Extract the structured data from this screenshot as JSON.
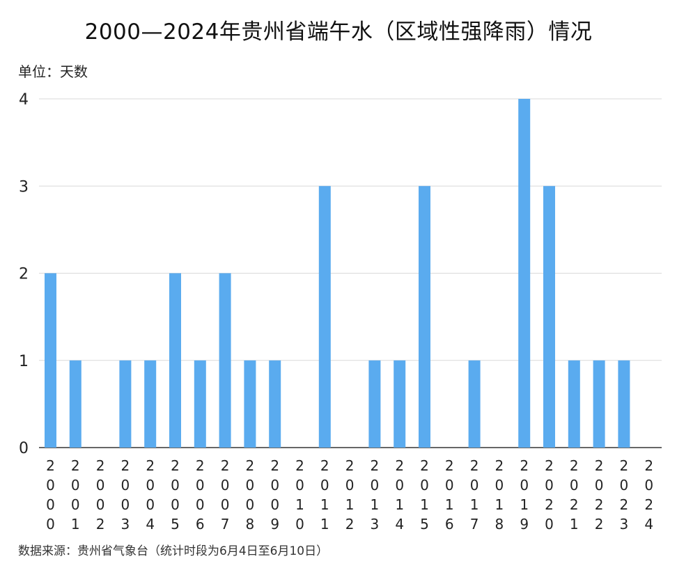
{
  "title": "2000—2024年贵州省端午水（区域性强降雨）情况",
  "unit_label": "单位：天数",
  "source_note": "数据来源：贵州省气象台（统计时段为6月4日至6月10日）",
  "colors": {
    "bar": "#5aabef"
  },
  "chart_data": {
    "type": "bar",
    "title": "2000—2024年贵州省端午水（区域性强降雨）情况",
    "xlabel": "",
    "ylabel": "单位：天数",
    "categories": [
      "2000",
      "2001",
      "2002",
      "2003",
      "2004",
      "2005",
      "2006",
      "2007",
      "2008",
      "2009",
      "2010",
      "2011",
      "2012",
      "2013",
      "2014",
      "2015",
      "2016",
      "2017",
      "2018",
      "2019",
      "2020",
      "2021",
      "2022",
      "2023",
      "2024"
    ],
    "values": [
      2,
      1,
      0,
      1,
      1,
      2,
      1,
      2,
      1,
      1,
      0,
      3,
      0,
      1,
      1,
      3,
      0,
      1,
      0,
      4,
      3,
      1,
      1,
      1,
      0
    ],
    "ylim": [
      0,
      4
    ],
    "yticks": [
      0,
      1,
      2,
      3,
      4
    ],
    "grid": true,
    "legend": "none"
  }
}
